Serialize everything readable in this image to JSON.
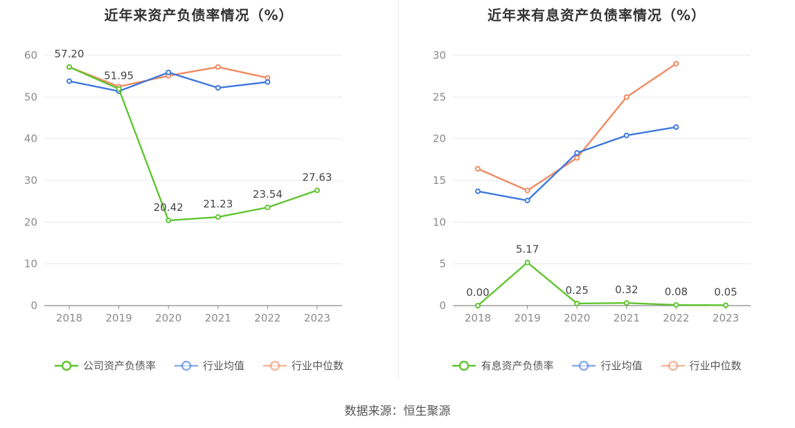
{
  "source_text": "数据来源：恒生聚源",
  "chart_data": [
    {
      "type": "line",
      "title": "近年来资产负债率情况（%）",
      "x": [
        "2018",
        "2019",
        "2020",
        "2021",
        "2022",
        "2023"
      ],
      "ylim": [
        0,
        60
      ],
      "yticks": [
        0,
        10,
        20,
        30,
        40,
        50,
        60
      ],
      "grid": true,
      "legend_position": "bottom",
      "series": [
        {
          "name": "公司资产负债率",
          "color": "#5ec52e",
          "values": [
            57.2,
            51.95,
            20.42,
            21.23,
            23.54,
            27.63
          ],
          "labels": [
            "57.20",
            "51.95",
            "20.42",
            "21.23",
            "23.54",
            "27.63"
          ]
        },
        {
          "name": "行业均值",
          "color": "#3d78df",
          "values": [
            53.8,
            51.4,
            55.9,
            52.2,
            53.6,
            null
          ]
        },
        {
          "name": "行业中位数",
          "color": "#f0895e",
          "values": [
            57.2,
            52.5,
            55.1,
            57.2,
            54.6,
            null
          ]
        }
      ]
    },
    {
      "type": "line",
      "title": "近年来有息资产负债率情况（%）",
      "x": [
        "2018",
        "2019",
        "2020",
        "2021",
        "2022",
        "2023"
      ],
      "ylim": [
        0,
        30
      ],
      "yticks": [
        0,
        5,
        10,
        15,
        20,
        25,
        30
      ],
      "grid": true,
      "legend_position": "bottom",
      "series": [
        {
          "name": "有息资产负债率",
          "color": "#5ec52e",
          "values": [
            0.0,
            5.17,
            0.25,
            0.32,
            0.08,
            0.05
          ],
          "labels": [
            "0.00",
            "5.17",
            "0.25",
            "0.32",
            "0.08",
            "0.05"
          ]
        },
        {
          "name": "行业均值",
          "color": "#3d78df",
          "values": [
            13.7,
            12.6,
            18.3,
            20.4,
            21.4,
            null
          ]
        },
        {
          "name": "行业中位数",
          "color": "#f0895e",
          "values": [
            16.4,
            13.8,
            17.7,
            25.0,
            29.0,
            null
          ]
        }
      ]
    }
  ]
}
